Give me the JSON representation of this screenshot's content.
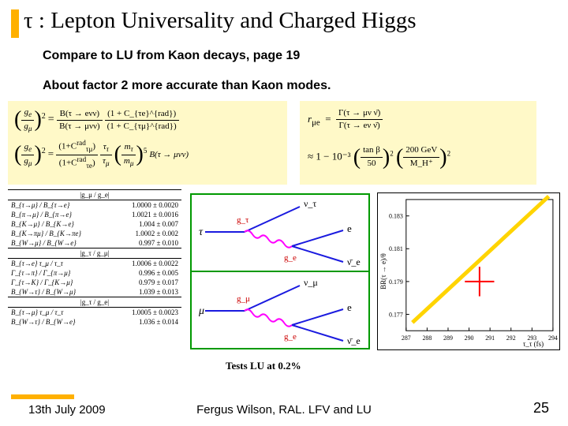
{
  "title": "τ : Lepton Universality and Charged Higgs",
  "sub1": "Compare to LU from Kaon decays, page 19",
  "sub2": "About factor 2 more accurate than Kaon modes.",
  "accent_color": "#ffb000",
  "eq_left": {
    "line1_prefix": "(g_e / g_μ)²  =",
    "line1_frac_num": "B(τ → eνν)",
    "line1_frac_den": "B(τ → μνν)",
    "line1_suffix_num": "(1 + C_{τe}^{rad})",
    "line1_suffix_den": "(1 + C_{τμ}^{rad})",
    "line2": "(g_e / g_μ)²  =  [(1+C_{τμ}^{rad})/(1+C_{τe}^{rad})] · (τ_τ/τ_μ) · (m_τ/m_μ)^5 · B(τ → μνν)"
  },
  "eq_right": {
    "line1": "r_{μe}  =  Γ(τ → μν ν̄) / Γ(τ → eν ν̄)",
    "line2_prefix": "≈ 1 − 10⁻³",
    "line2_frac1_num": "tan β",
    "line2_frac1_den": "50",
    "line2_frac2_num": "200 GeV",
    "line2_frac2_den": "M_H⁺"
  },
  "ratio_table": {
    "sections": [
      {
        "head": "|g_μ / g_e|",
        "rows": [
          [
            "B_{τ→μ} / B_{τ→e}",
            "1.0000 ± 0.0020"
          ],
          [
            "B_{π→μ} / B_{π→e}",
            "1.0021 ± 0.0016"
          ],
          [
            "B_{K→μ} / B_{K→e}",
            "1.004 ± 0.007"
          ],
          [
            "B_{K→πμ} / B_{K→πe}",
            "1.0002 ± 0.002"
          ],
          [
            "B_{W→μ} / B_{W→e}",
            "0.997 ± 0.010"
          ]
        ]
      },
      {
        "head": "|g_τ / g_μ|",
        "rows": [
          [
            "B_{τ→e} τ_μ / τ_τ",
            "1.0006 ± 0.0022"
          ],
          [
            "Γ_{τ→π} / Γ_{π→μ}",
            "0.996 ± 0.005"
          ],
          [
            "Γ_{τ→K} / Γ_{K→μ}",
            "0.979 ± 0.017"
          ],
          [
            "B_{W→τ} / B_{W→μ}",
            "1.039 ± 0.013"
          ]
        ]
      },
      {
        "head": "|g_τ / g_e|",
        "rows": [
          [
            "B_{τ→μ} τ_μ / τ_τ",
            "1.0005 ± 0.0023"
          ],
          [
            "B_{W→τ} / B_{W→e}",
            "1.036 ± 0.014"
          ]
        ]
      }
    ]
  },
  "feynman": {
    "box_color": "#009900",
    "photon_color": "#ff00ff",
    "curve_color": "#1a1adf",
    "labels": {
      "top_left": "τ",
      "top_g1": "g_τ",
      "top_nutau": "ν_τ",
      "top_g2": "g_e",
      "top_e": "e",
      "top_nue": "ν̄_e",
      "bot_left": "μ",
      "bot_g1": "g_μ",
      "bot_numu": "ν_μ",
      "bot_g2": "g_e",
      "bot_e": "e",
      "bot_nue": "ν̄_e"
    }
  },
  "chart": {
    "ylabel": "BR(τ → e)/θ",
    "xlabel": "τ_τ (fs)",
    "xlim": [
      287,
      294
    ],
    "ylim": [
      0.176,
      0.184
    ],
    "xticks": [
      287,
      288,
      289,
      290,
      291,
      292,
      293,
      294
    ],
    "yticks": [
      0.177,
      0.179,
      0.181,
      0.183
    ],
    "line_color": "#ffd400",
    "line_width": 5,
    "line_p1": [
      287.3,
      0.1765
    ],
    "line_p2": [
      293.8,
      0.1842
    ],
    "point_color": "#ff0000",
    "point": [
      290.5,
      0.179
    ],
    "point_err_x": 0.7,
    "point_err_y": 0.0009
  },
  "tests_label": "Tests LU at 0.2%",
  "footer": {
    "date": "13th July 2009",
    "center": "Fergus Wilson, RAL. LFV and LU",
    "page": "25"
  }
}
